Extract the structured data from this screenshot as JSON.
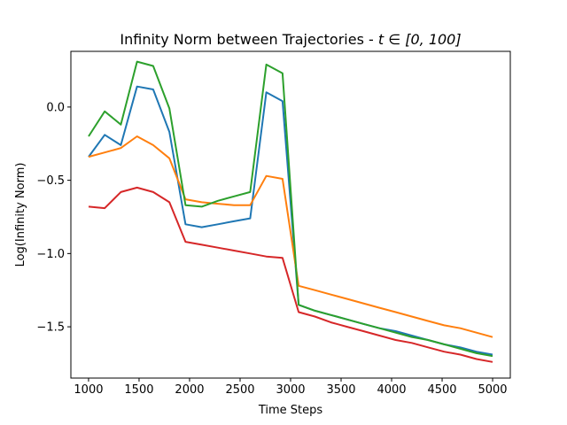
{
  "chart_data": {
    "type": "line",
    "title": "Infinity Norm between Trajectories - t ∈ [0, 100]",
    "title_plain": "Infinity Norm between Trajectories - ",
    "title_math": "t ∈ [0, 100]",
    "xlabel": "Time Steps",
    "ylabel": "Log(Infinity Norm)",
    "xlim": [
      825,
      5175
    ],
    "ylim": [
      -1.85,
      0.38
    ],
    "xticks": [
      1000,
      1500,
      2000,
      2500,
      3000,
      3500,
      4000,
      4500,
      5000
    ],
    "xtick_labels": [
      "1000",
      "1500",
      "2000",
      "2500",
      "3000",
      "3500",
      "4000",
      "4500",
      "5000"
    ],
    "yticks": [
      0.0,
      -0.5,
      -1.0,
      -1.5
    ],
    "ytick_labels": [
      "0.0",
      "−0.5",
      "−1.0",
      "−1.5"
    ],
    "grid": false,
    "legend": "none",
    "x": [
      1000,
      1160,
      1320,
      1480,
      1640,
      1800,
      1960,
      2120,
      2280,
      2440,
      2600,
      2760,
      2920,
      3080,
      3240,
      3400,
      3560,
      3720,
      3880,
      4040,
      4200,
      4360,
      4520,
      4680,
      4840,
      5000
    ],
    "series": [
      {
        "color": "#1f77b4",
        "values": [
          -0.34,
          -0.19,
          -0.26,
          0.14,
          0.12,
          -0.17,
          -0.8,
          -0.82,
          -0.8,
          -0.78,
          -0.76,
          0.1,
          0.04,
          -1.35,
          -1.39,
          -1.42,
          -1.45,
          -1.48,
          -1.51,
          -1.53,
          -1.56,
          -1.59,
          -1.62,
          -1.64,
          -1.67,
          -1.69
        ]
      },
      {
        "color": "#ff7f0e",
        "values": [
          -0.34,
          -0.31,
          -0.28,
          -0.2,
          -0.26,
          -0.35,
          -0.63,
          -0.65,
          -0.66,
          -0.67,
          -0.67,
          -0.47,
          -0.49,
          -1.22,
          -1.25,
          -1.28,
          -1.31,
          -1.34,
          -1.37,
          -1.4,
          -1.43,
          -1.46,
          -1.49,
          -1.51,
          -1.54,
          -1.57
        ]
      },
      {
        "color": "#2ca02c",
        "values": [
          -0.2,
          -0.03,
          -0.12,
          0.31,
          0.28,
          -0.01,
          -0.67,
          -0.68,
          -0.64,
          -0.61,
          -0.58,
          0.29,
          0.23,
          -1.35,
          -1.39,
          -1.42,
          -1.45,
          -1.48,
          -1.51,
          -1.54,
          -1.57,
          -1.59,
          -1.62,
          -1.65,
          -1.68,
          -1.7
        ]
      },
      {
        "color": "#d62728",
        "values": [
          -0.68,
          -0.69,
          -0.58,
          -0.55,
          -0.58,
          -0.65,
          -0.92,
          -0.94,
          -0.96,
          -0.98,
          -1.0,
          -1.02,
          -1.03,
          -1.4,
          -1.43,
          -1.47,
          -1.5,
          -1.53,
          -1.56,
          -1.59,
          -1.61,
          -1.64,
          -1.67,
          -1.69,
          -1.72,
          -1.74
        ]
      }
    ]
  }
}
